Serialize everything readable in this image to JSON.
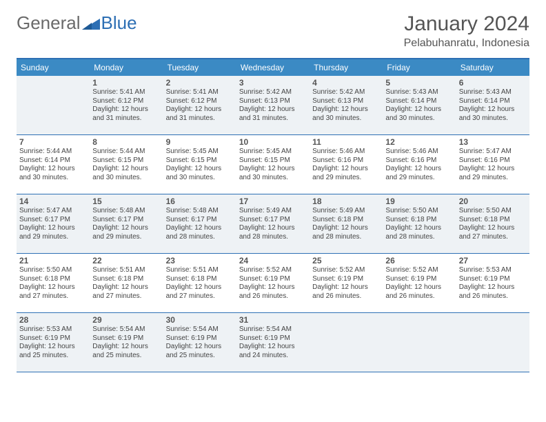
{
  "logo": {
    "text1": "General",
    "text2": "Blue"
  },
  "title": "January 2024",
  "location": "Pelabuhanratu, Indonesia",
  "colors": {
    "header_bg": "#3b8ac4",
    "border": "#2d6fb4",
    "shaded": "#eef2f5",
    "text": "#444444"
  },
  "day_headers": [
    "Sunday",
    "Monday",
    "Tuesday",
    "Wednesday",
    "Thursday",
    "Friday",
    "Saturday"
  ],
  "start_offset": 1,
  "days": [
    {
      "n": "1",
      "sr": "5:41 AM",
      "ss": "6:12 PM",
      "dl": "12 hours and 31 minutes."
    },
    {
      "n": "2",
      "sr": "5:41 AM",
      "ss": "6:12 PM",
      "dl": "12 hours and 31 minutes."
    },
    {
      "n": "3",
      "sr": "5:42 AM",
      "ss": "6:13 PM",
      "dl": "12 hours and 31 minutes."
    },
    {
      "n": "4",
      "sr": "5:42 AM",
      "ss": "6:13 PM",
      "dl": "12 hours and 30 minutes."
    },
    {
      "n": "5",
      "sr": "5:43 AM",
      "ss": "6:14 PM",
      "dl": "12 hours and 30 minutes."
    },
    {
      "n": "6",
      "sr": "5:43 AM",
      "ss": "6:14 PM",
      "dl": "12 hours and 30 minutes."
    },
    {
      "n": "7",
      "sr": "5:44 AM",
      "ss": "6:14 PM",
      "dl": "12 hours and 30 minutes."
    },
    {
      "n": "8",
      "sr": "5:44 AM",
      "ss": "6:15 PM",
      "dl": "12 hours and 30 minutes."
    },
    {
      "n": "9",
      "sr": "5:45 AM",
      "ss": "6:15 PM",
      "dl": "12 hours and 30 minutes."
    },
    {
      "n": "10",
      "sr": "5:45 AM",
      "ss": "6:15 PM",
      "dl": "12 hours and 30 minutes."
    },
    {
      "n": "11",
      "sr": "5:46 AM",
      "ss": "6:16 PM",
      "dl": "12 hours and 29 minutes."
    },
    {
      "n": "12",
      "sr": "5:46 AM",
      "ss": "6:16 PM",
      "dl": "12 hours and 29 minutes."
    },
    {
      "n": "13",
      "sr": "5:47 AM",
      "ss": "6:16 PM",
      "dl": "12 hours and 29 minutes."
    },
    {
      "n": "14",
      "sr": "5:47 AM",
      "ss": "6:17 PM",
      "dl": "12 hours and 29 minutes."
    },
    {
      "n": "15",
      "sr": "5:48 AM",
      "ss": "6:17 PM",
      "dl": "12 hours and 29 minutes."
    },
    {
      "n": "16",
      "sr": "5:48 AM",
      "ss": "6:17 PM",
      "dl": "12 hours and 28 minutes."
    },
    {
      "n": "17",
      "sr": "5:49 AM",
      "ss": "6:17 PM",
      "dl": "12 hours and 28 minutes."
    },
    {
      "n": "18",
      "sr": "5:49 AM",
      "ss": "6:18 PM",
      "dl": "12 hours and 28 minutes."
    },
    {
      "n": "19",
      "sr": "5:50 AM",
      "ss": "6:18 PM",
      "dl": "12 hours and 28 minutes."
    },
    {
      "n": "20",
      "sr": "5:50 AM",
      "ss": "6:18 PM",
      "dl": "12 hours and 27 minutes."
    },
    {
      "n": "21",
      "sr": "5:50 AM",
      "ss": "6:18 PM",
      "dl": "12 hours and 27 minutes."
    },
    {
      "n": "22",
      "sr": "5:51 AM",
      "ss": "6:18 PM",
      "dl": "12 hours and 27 minutes."
    },
    {
      "n": "23",
      "sr": "5:51 AM",
      "ss": "6:18 PM",
      "dl": "12 hours and 27 minutes."
    },
    {
      "n": "24",
      "sr": "5:52 AM",
      "ss": "6:19 PM",
      "dl": "12 hours and 26 minutes."
    },
    {
      "n": "25",
      "sr": "5:52 AM",
      "ss": "6:19 PM",
      "dl": "12 hours and 26 minutes."
    },
    {
      "n": "26",
      "sr": "5:52 AM",
      "ss": "6:19 PM",
      "dl": "12 hours and 26 minutes."
    },
    {
      "n": "27",
      "sr": "5:53 AM",
      "ss": "6:19 PM",
      "dl": "12 hours and 26 minutes."
    },
    {
      "n": "28",
      "sr": "5:53 AM",
      "ss": "6:19 PM",
      "dl": "12 hours and 25 minutes."
    },
    {
      "n": "29",
      "sr": "5:54 AM",
      "ss": "6:19 PM",
      "dl": "12 hours and 25 minutes."
    },
    {
      "n": "30",
      "sr": "5:54 AM",
      "ss": "6:19 PM",
      "dl": "12 hours and 25 minutes."
    },
    {
      "n": "31",
      "sr": "5:54 AM",
      "ss": "6:19 PM",
      "dl": "12 hours and 24 minutes."
    }
  ],
  "labels": {
    "sunrise": "Sunrise: ",
    "sunset": "Sunset: ",
    "daylight": "Daylight: "
  }
}
